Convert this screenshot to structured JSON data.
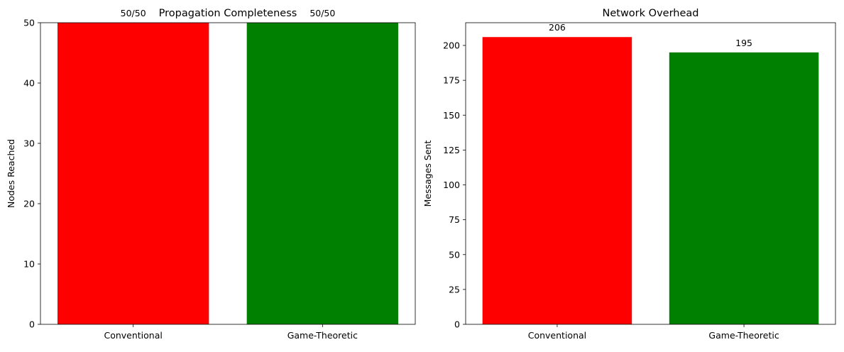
{
  "chart_data": [
    {
      "type": "bar",
      "title": "Propagation Completeness",
      "xlabel": "",
      "ylabel": "Nodes Reached",
      "categories": [
        "Conventional",
        "Game-Theoretic"
      ],
      "values": [
        50,
        50
      ],
      "bar_labels": [
        "50/50",
        "50/50"
      ],
      "colors": [
        "#ff0000",
        "#008000"
      ],
      "ylim": [
        0,
        50
      ],
      "yticks": [
        0,
        10,
        20,
        30,
        40,
        50
      ],
      "grid": false,
      "legend": "none"
    },
    {
      "type": "bar",
      "title": "Network Overhead",
      "xlabel": "",
      "ylabel": "Messages Sent",
      "categories": [
        "Conventional",
        "Game-Theoretic"
      ],
      "values": [
        206,
        195
      ],
      "bar_labels": [
        "206",
        "195"
      ],
      "colors": [
        "#ff0000",
        "#008000"
      ],
      "ylim": [
        0,
        216.3
      ],
      "yticks": [
        0,
        25,
        50,
        75,
        100,
        125,
        150,
        175,
        200
      ],
      "grid": false,
      "legend": "none"
    }
  ]
}
